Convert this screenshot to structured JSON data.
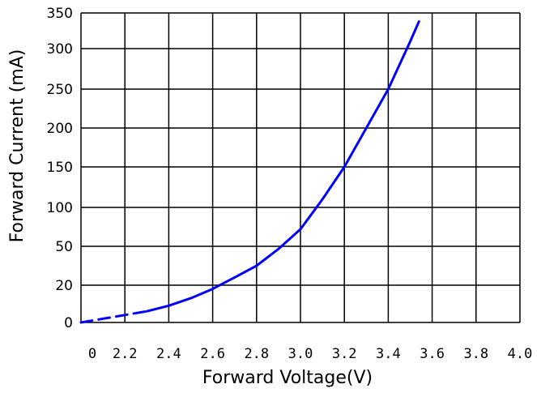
{
  "chart_data": {
    "type": "line",
    "title": "",
    "xlabel": "Forward Voltage(V)",
    "ylabel": "Forward Current (mA)",
    "x_tick_labels": [
      "0",
      "2.2",
      "2.4",
      "2.6",
      "2.8",
      "3.0",
      "3.2",
      "3.4",
      "3.6",
      "3.8",
      "4.0"
    ],
    "y_tick_labels": [
      "0",
      "20",
      "50",
      "100",
      "150",
      "200",
      "250",
      "300",
      "350"
    ],
    "grid": true,
    "series": [
      {
        "color": "#0000ff",
        "x": [
          1.8,
          1.9,
          2.0,
          2.1,
          2.2,
          2.3,
          2.4,
          2.5,
          2.6,
          2.7,
          2.8,
          2.9,
          3.0,
          3.1,
          3.2,
          3.3,
          3.4,
          3.5,
          3.54
        ],
        "y": [
          0,
          1,
          2,
          3,
          4,
          6,
          9,
          13,
          18,
          26,
          35,
          48,
          72,
          110,
          150,
          200,
          250,
          310,
          338
        ]
      }
    ]
  }
}
